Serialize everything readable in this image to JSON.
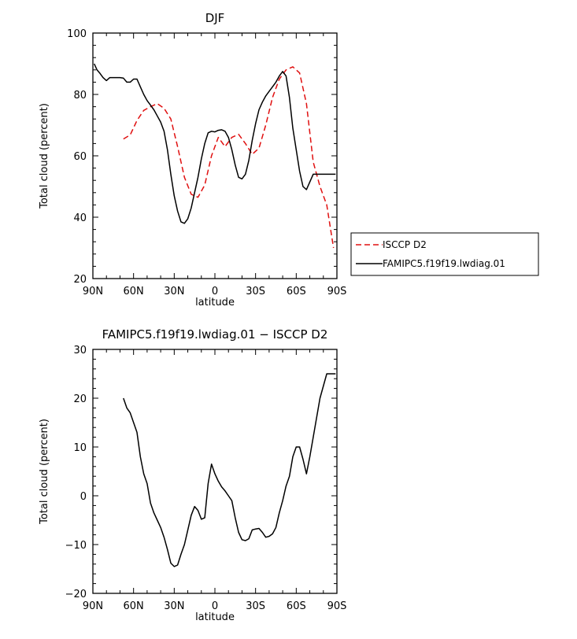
{
  "chart_data": [
    {
      "type": "line",
      "title": "DJF",
      "xlabel": "latitude",
      "ylabel": "Total cloud (percent)",
      "xlim": [
        90,
        -90
      ],
      "ylim": [
        20,
        100
      ],
      "x_ticks": [
        90,
        60,
        30,
        0,
        -30,
        -60,
        -90
      ],
      "x_tick_labels": [
        "90N",
        "60N",
        "30N",
        "0",
        "30S",
        "60S",
        "90S"
      ],
      "y_ticks": [
        20,
        40,
        60,
        80,
        100
      ],
      "y_tick_labels": [
        "20",
        "40",
        "60",
        "80",
        "100"
      ],
      "legend_position": "right",
      "series": [
        {
          "name": "ISCCP D2",
          "color": "#e01010",
          "dash": "dashed",
          "x": [
            67.5,
            62.5,
            57.5,
            52.5,
            47.5,
            42.5,
            37.5,
            32.5,
            27.5,
            22.5,
            17.5,
            12.5,
            7.5,
            2.5,
            -2.5,
            -7.5,
            -12.5,
            -17.5,
            -22.5,
            -27.5,
            -32.5,
            -37.5,
            -42.5,
            -47.5,
            -52.5,
            -57.5,
            -62.5,
            -67.5,
            -72.5,
            -77.5,
            -82.5,
            -87.5
          ],
          "y": [
            65.5,
            66.8,
            71.5,
            74.8,
            76.0,
            77.0,
            75.5,
            72.0,
            63.0,
            53.0,
            47.5,
            46.5,
            50.5,
            60.0,
            66.0,
            63.0,
            66.0,
            67.0,
            64.0,
            60.5,
            62.5,
            70.0,
            79.0,
            85.0,
            88.0,
            89.0,
            87.0,
            77.0,
            58.0,
            50.0,
            44.0,
            30.0
          ]
        },
        {
          "name": "FAMIPC5.f19f19.lwdiag.01",
          "color": "#000000",
          "dash": "solid",
          "x": [
            89,
            87,
            85,
            82.5,
            80,
            77.5,
            75,
            72.5,
            70,
            67.5,
            65,
            62.5,
            60,
            57.5,
            55,
            52.5,
            50,
            47.5,
            45,
            42.5,
            40,
            37.5,
            35,
            32.5,
            30,
            27.5,
            25,
            22.5,
            20,
            17.5,
            15,
            12.5,
            10,
            7.5,
            5,
            2.5,
            0,
            -2.5,
            -5,
            -7.5,
            -10,
            -12.5,
            -15,
            -17.5,
            -20,
            -22.5,
            -25,
            -27.5,
            -30,
            -32.5,
            -35,
            -37.5,
            -40,
            -42.5,
            -45,
            -47.5,
            -50,
            -52.5,
            -55,
            -57.5,
            -60,
            -62.5,
            -65,
            -67.5,
            -70,
            -72.5,
            -75,
            -77.5,
            -80,
            -82.5,
            -85,
            -87.5,
            -89
          ],
          "y": [
            90,
            88,
            87,
            85.5,
            84.5,
            85.5,
            85.5,
            85.5,
            85.5,
            85.3,
            84.0,
            84.0,
            85.0,
            85.0,
            82.5,
            80.0,
            78.0,
            76.5,
            75.0,
            73.0,
            71.0,
            68.0,
            62.0,
            54.0,
            47.0,
            42.0,
            38.5,
            38.0,
            39.5,
            43.0,
            48.0,
            53.0,
            59.0,
            64.0,
            67.5,
            68.0,
            67.8,
            68.3,
            68.5,
            68.0,
            66.0,
            62.0,
            57.0,
            53.0,
            52.5,
            54.0,
            58.5,
            65.0,
            70.5,
            75.0,
            77.5,
            79.5,
            81.0,
            82.5,
            84.0,
            86.0,
            87.5,
            86.0,
            79.0,
            69.0,
            62.0,
            55.0,
            50.0,
            49.0,
            51.5,
            54.0,
            54.0,
            54.0,
            54.0,
            54.0,
            54.0,
            54.0,
            54.0
          ]
        }
      ]
    },
    {
      "type": "line",
      "title": "FAMIPC5.f19f19.lwdiag.01 − ISCCP D2",
      "xlabel": "latitude",
      "ylabel": "Total cloud (percent)",
      "xlim": [
        90,
        -90
      ],
      "ylim": [
        -20,
        30
      ],
      "x_ticks": [
        90,
        60,
        30,
        0,
        -30,
        -60,
        -90
      ],
      "x_tick_labels": [
        "90N",
        "60N",
        "30N",
        "0",
        "30S",
        "60S",
        "90S"
      ],
      "y_ticks": [
        -20,
        -10,
        0,
        10,
        20,
        30
      ],
      "y_tick_labels": [
        "−20",
        "−10",
        "0",
        "10",
        "20",
        "30"
      ],
      "series": [
        {
          "color": "#000000",
          "dash": "solid",
          "x": [
            67.5,
            65,
            62.5,
            60,
            57.5,
            55,
            52.5,
            50,
            47.5,
            45,
            42.5,
            40,
            37.5,
            35,
            32.5,
            30,
            27.5,
            25,
            22.5,
            20,
            17.5,
            15,
            12.5,
            10,
            7.5,
            5,
            2.5,
            0,
            -2.5,
            -5,
            -7.5,
            -10,
            -12.5,
            -15,
            -17.5,
            -20,
            -22.5,
            -25,
            -27.5,
            -30,
            -32.5,
            -35,
            -37.5,
            -40,
            -42.5,
            -45,
            -47.5,
            -50,
            -52.5,
            -55,
            -57.5,
            -60,
            -62.5,
            -65,
            -67.5,
            -70,
            -72.5,
            -75,
            -77.5,
            -80,
            -82.5,
            -85,
            -87.5,
            -89
          ],
          "y": [
            20.0,
            18.0,
            17.0,
            15.0,
            13.0,
            8.0,
            4.5,
            2.5,
            -1.5,
            -3.5,
            -5.0,
            -6.5,
            -8.5,
            -11.0,
            -13.8,
            -14.5,
            -14.2,
            -12.0,
            -10.0,
            -7.0,
            -4.0,
            -2.2,
            -3.0,
            -4.8,
            -4.5,
            2.5,
            6.5,
            4.5,
            3.0,
            1.8,
            1.0,
            0.0,
            -1.0,
            -4.5,
            -7.5,
            -9.0,
            -9.2,
            -8.8,
            -7.0,
            -6.8,
            -6.7,
            -7.5,
            -8.5,
            -8.3,
            -7.8,
            -6.5,
            -3.5,
            -1.0,
            2.0,
            4.0,
            8.0,
            10.0,
            10.0,
            7.5,
            4.5,
            8.0,
            12.0,
            16.0,
            20.0,
            22.5,
            25.0,
            25.0,
            25.0,
            25.0
          ]
        }
      ]
    }
  ]
}
